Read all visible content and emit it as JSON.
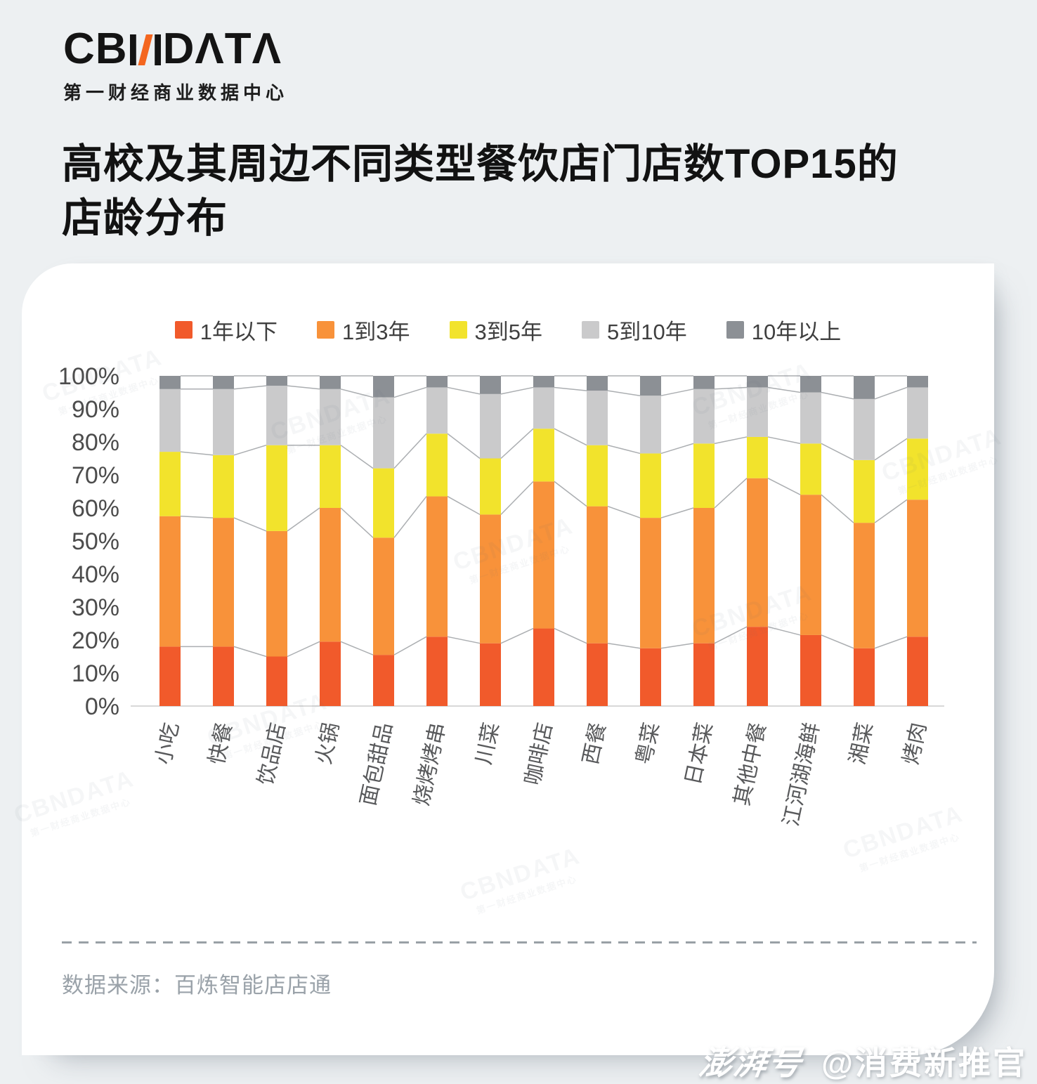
{
  "logo": {
    "part1": "CB",
    "part2": "DΛTΛ",
    "full_name": "CBNDATA",
    "subtitle": "第一财经商业数据中心",
    "accent_color": "#F4661F"
  },
  "title": {
    "line1": "高校及其周边不同类型餐饮店门店数TOP15的",
    "line2": "店龄分布"
  },
  "chart_data": {
    "type": "bar",
    "stacked": true,
    "unit": "%",
    "title": "高校及其周边不同类型餐饮店门店数TOP15的店龄分布",
    "xlabel": "",
    "ylabel": "",
    "ylim": [
      0,
      100
    ],
    "ytick_step": 10,
    "grid": false,
    "legend_position": "top",
    "connector_lines": true,
    "categories": [
      "小吃",
      "快餐",
      "饮品店",
      "火锅",
      "面包甜品",
      "烧烤烤串",
      "川菜",
      "咖啡店",
      "西餐",
      "粤菜",
      "日本菜",
      "其他中餐",
      "江河湖海鲜",
      "湘菜",
      "烤肉"
    ],
    "series": [
      {
        "name": "1年以下",
        "color": "#F15A2B",
        "values": [
          18,
          18,
          15,
          19.5,
          15.5,
          21,
          19,
          23.5,
          19,
          17.5,
          19,
          24,
          21.5,
          17.5,
          21
        ]
      },
      {
        "name": "1到3年",
        "color": "#F8923A",
        "values": [
          39.5,
          39,
          38,
          40.5,
          35.5,
          42.5,
          39,
          44.5,
          41.5,
          39.5,
          41,
          45,
          42.5,
          38,
          41.5
        ]
      },
      {
        "name": "3到5年",
        "color": "#F2E32C",
        "values": [
          19.5,
          19,
          26,
          19,
          21,
          19,
          17,
          16,
          18.5,
          19.5,
          19.5,
          12.5,
          15.5,
          19,
          18.5
        ]
      },
      {
        "name": "5到10年",
        "color": "#CACACB",
        "values": [
          19,
          20,
          18,
          17,
          21.5,
          14,
          19.5,
          12.5,
          16.5,
          17.5,
          16.5,
          15,
          15.5,
          18.5,
          15.5
        ]
      },
      {
        "name": "10年以上",
        "color": "#8C9095",
        "values": [
          4,
          4,
          3,
          4,
          6.5,
          3.5,
          5.5,
          3.5,
          4.5,
          6,
          4,
          3.5,
          5,
          7,
          3.5
        ]
      }
    ]
  },
  "axis_style": {
    "ytick_color": "#4c4c4c",
    "xlabel_color": "#58595b",
    "axis_line_color": "#d8d8d8",
    "connector_color": "#abaeb1"
  },
  "footer": {
    "source": "数据来源：百炼智能店店通"
  },
  "watermark": {
    "brand": "CBNDATA",
    "sub": "第一财经商业数据中心"
  },
  "badge": {
    "logo": "澎湃号",
    "handle": "@消费新推官"
  }
}
